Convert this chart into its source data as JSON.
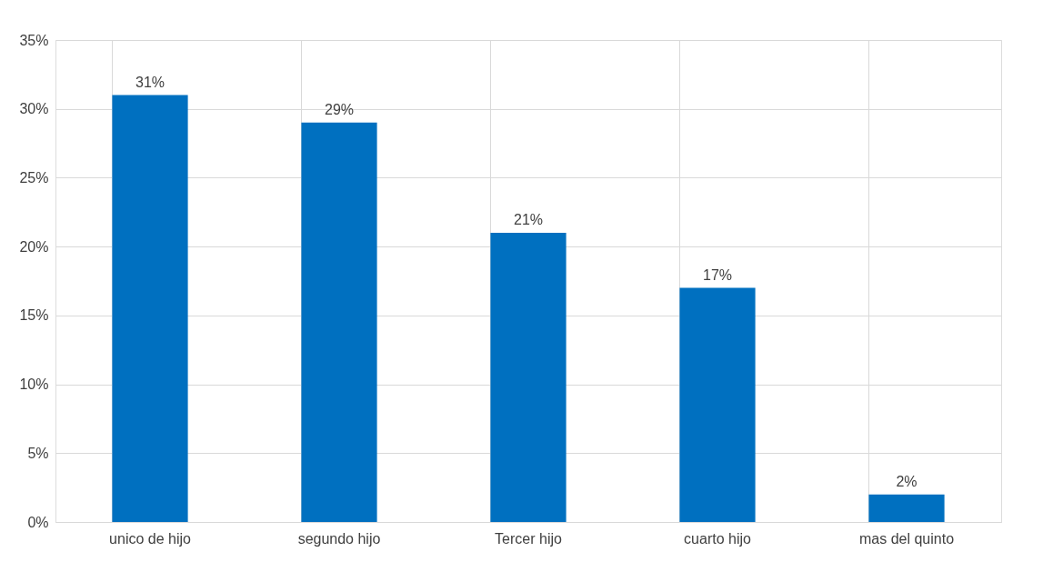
{
  "chart_data": {
    "type": "bar",
    "categories": [
      "unico de hijo",
      "segundo hijo",
      "Tercer hijo",
      "cuarto hijo",
      "mas del quinto"
    ],
    "values": [
      31,
      29,
      21,
      17,
      2
    ],
    "value_labels": [
      "31%",
      "29%",
      "21%",
      "17%",
      "2%"
    ],
    "color": "#0070c0",
    "ylim": [
      0,
      35
    ],
    "yticks": [
      {
        "value": 0,
        "label": "0%"
      },
      {
        "value": 5,
        "label": "5%"
      },
      {
        "value": 10,
        "label": "10%"
      },
      {
        "value": 15,
        "label": "15%"
      },
      {
        "value": 20,
        "label": "20%"
      },
      {
        "value": 25,
        "label": "25%"
      },
      {
        "value": 30,
        "label": "30%"
      },
      {
        "value": 35,
        "label": "35%"
      }
    ],
    "grid": true
  }
}
